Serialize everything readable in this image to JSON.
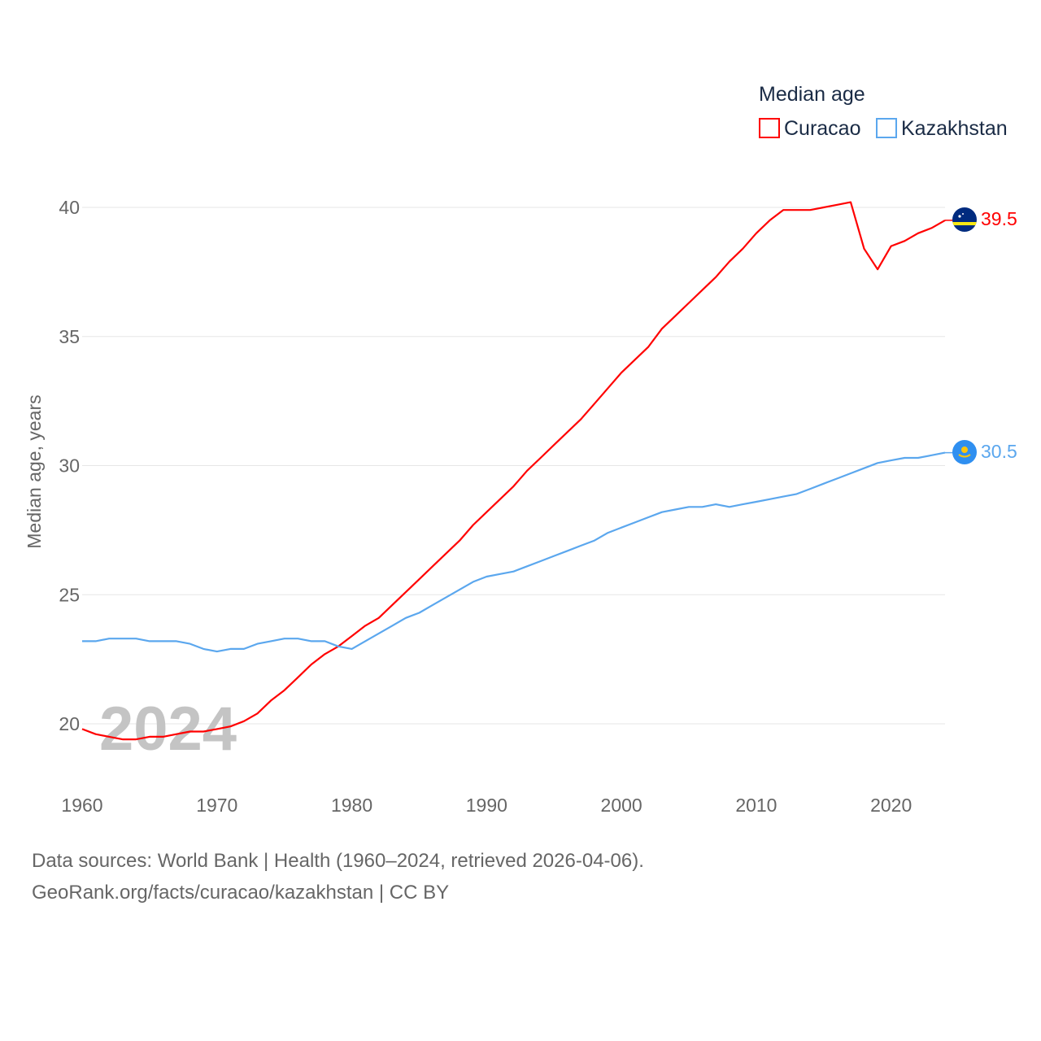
{
  "chart_data": {
    "type": "line",
    "legend_title": "Median age",
    "ylabel": "Median age, years",
    "xlabel": "",
    "year_watermark": "2024",
    "xlim": [
      1960,
      2024
    ],
    "ylim": [
      20,
      40
    ],
    "x_ticks": [
      "1960",
      "1970",
      "1980",
      "1990",
      "2000",
      "2010",
      "2020"
    ],
    "y_ticks": [
      "20",
      "25",
      "30",
      "35",
      "40"
    ],
    "grid": true,
    "legend_position": "top-right",
    "x": [
      1960,
      1961,
      1962,
      1963,
      1964,
      1965,
      1966,
      1967,
      1968,
      1969,
      1970,
      1971,
      1972,
      1973,
      1974,
      1975,
      1976,
      1977,
      1978,
      1979,
      1980,
      1981,
      1982,
      1983,
      1984,
      1985,
      1986,
      1987,
      1988,
      1989,
      1990,
      1991,
      1992,
      1993,
      1994,
      1995,
      1996,
      1997,
      1998,
      1999,
      2000,
      2001,
      2002,
      2003,
      2004,
      2005,
      2006,
      2007,
      2008,
      2009,
      2010,
      2011,
      2012,
      2013,
      2014,
      2015,
      2016,
      2017,
      2018,
      2019,
      2020,
      2021,
      2022,
      2023,
      2024
    ],
    "series": [
      {
        "name": "Curacao",
        "color": "#ff0000",
        "end_label": "39.5",
        "values": [
          19.8,
          19.6,
          19.5,
          19.4,
          19.4,
          19.5,
          19.5,
          19.6,
          19.7,
          19.7,
          19.8,
          19.9,
          20.1,
          20.4,
          20.9,
          21.3,
          21.8,
          22.3,
          22.7,
          23.0,
          23.4,
          23.8,
          24.1,
          24.6,
          25.1,
          25.6,
          26.1,
          26.6,
          27.1,
          27.7,
          28.2,
          28.7,
          29.2,
          29.8,
          30.3,
          30.8,
          31.3,
          31.8,
          32.4,
          33.0,
          33.6,
          34.1,
          34.6,
          35.3,
          35.8,
          36.3,
          36.8,
          37.3,
          37.9,
          38.4,
          39.0,
          39.5,
          39.9,
          39.9,
          39.9,
          40.0,
          40.1,
          40.2,
          38.4,
          37.6,
          38.5,
          38.7,
          39.0,
          39.2,
          39.5
        ]
      },
      {
        "name": "Kazakhstan",
        "color": "#5ba7ee",
        "end_label": "30.5",
        "values": [
          23.2,
          23.2,
          23.3,
          23.3,
          23.3,
          23.2,
          23.2,
          23.2,
          23.1,
          22.9,
          22.8,
          22.9,
          22.9,
          23.1,
          23.2,
          23.3,
          23.3,
          23.2,
          23.2,
          23.0,
          22.9,
          23.2,
          23.5,
          23.8,
          24.1,
          24.3,
          24.6,
          24.9,
          25.2,
          25.5,
          25.7,
          25.8,
          25.9,
          26.1,
          26.3,
          26.5,
          26.7,
          26.9,
          27.1,
          27.4,
          27.6,
          27.8,
          28.0,
          28.2,
          28.3,
          28.4,
          28.4,
          28.5,
          28.4,
          28.5,
          28.6,
          28.7,
          28.8,
          28.9,
          29.1,
          29.3,
          29.5,
          29.7,
          29.9,
          30.1,
          30.2,
          30.3,
          30.3,
          30.4,
          30.5
        ]
      }
    ]
  },
  "footer": {
    "line1": "Data sources: World Bank | Health (1960–2024, retrieved 2026-04-06).",
    "line2": "GeoRank.org/facts/curacao/kazakhstan | CC BY"
  }
}
